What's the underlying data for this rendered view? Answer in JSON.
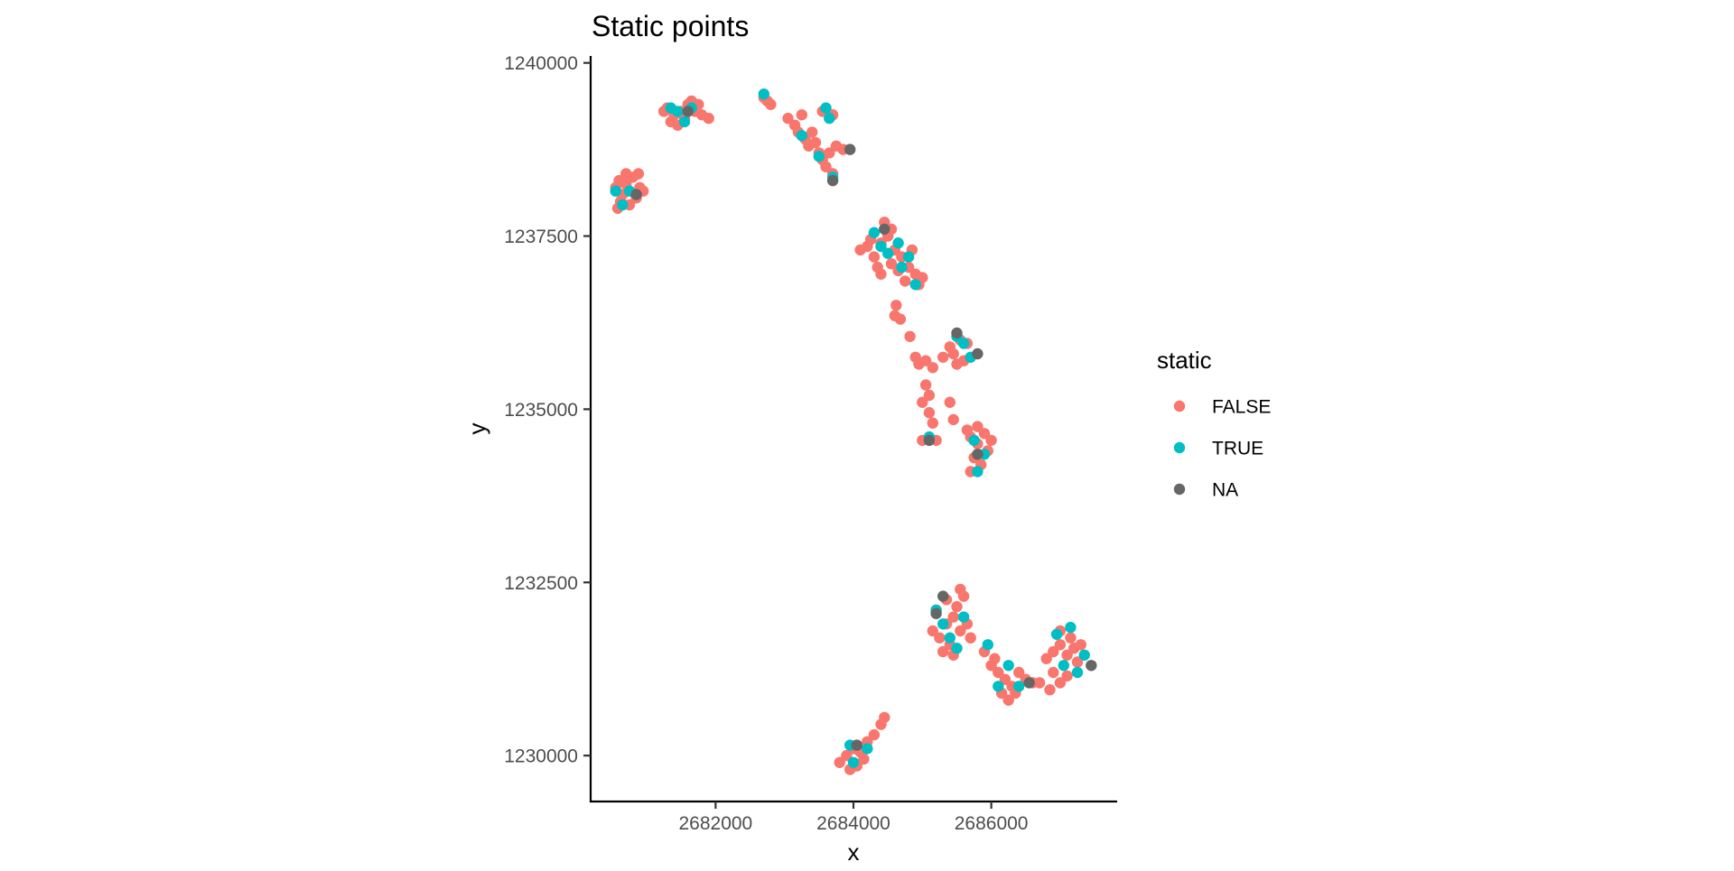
{
  "chart_data": {
    "type": "scatter",
    "title": "Static points",
    "xlabel": "x",
    "ylabel": "y",
    "xlim": [
      2680200,
      2687800
    ],
    "ylim": [
      1229350,
      1240100
    ],
    "x_ticks": [
      {
        "value": 2682000,
        "label": "2682000"
      },
      {
        "value": 2684000,
        "label": "2684000"
      },
      {
        "value": 2686000,
        "label": "2686000"
      }
    ],
    "y_ticks": [
      {
        "value": 1230000,
        "label": "1230000"
      },
      {
        "value": 1232500,
        "label": "1232500"
      },
      {
        "value": 1235000,
        "label": "1235000"
      },
      {
        "value": 1237500,
        "label": "1237500"
      },
      {
        "value": 1240000,
        "label": "1240000"
      }
    ],
    "grid": false,
    "legend": {
      "title": "static",
      "position": "right"
    },
    "series": [
      {
        "name": "FALSE",
        "color": "#F8766D",
        "points": [
          [
            2680550,
            1238200
          ],
          [
            2680600,
            1238300
          ],
          [
            2680650,
            1238100
          ],
          [
            2680700,
            1238250
          ],
          [
            2680800,
            1238350
          ],
          [
            2680900,
            1238200
          ],
          [
            2680620,
            1238000
          ],
          [
            2680750,
            1237950
          ],
          [
            2680850,
            1238050
          ],
          [
            2680950,
            1238150
          ],
          [
            2680580,
            1237900
          ],
          [
            2680700,
            1238400
          ],
          [
            2680880,
            1238400
          ],
          [
            2681300,
            1239350
          ],
          [
            2681400,
            1239250
          ],
          [
            2681500,
            1239300
          ],
          [
            2681600,
            1239400
          ],
          [
            2681700,
            1239300
          ],
          [
            2681450,
            1239100
          ],
          [
            2681550,
            1239200
          ],
          [
            2681350,
            1239150
          ],
          [
            2681800,
            1239250
          ],
          [
            2681650,
            1239450
          ],
          [
            2681250,
            1239300
          ],
          [
            2681900,
            1239200
          ],
          [
            2681750,
            1239400
          ],
          [
            2682700,
            1239500
          ],
          [
            2682750,
            1239450
          ],
          [
            2682800,
            1239400
          ],
          [
            2683050,
            1239200
          ],
          [
            2683150,
            1239100
          ],
          [
            2683200,
            1239000
          ],
          [
            2683300,
            1238900
          ],
          [
            2683350,
            1238800
          ],
          [
            2683450,
            1238850
          ],
          [
            2683500,
            1238700
          ],
          [
            2683550,
            1238600
          ],
          [
            2683650,
            1238700
          ],
          [
            2683600,
            1238500
          ],
          [
            2683700,
            1238400
          ],
          [
            2683250,
            1239250
          ],
          [
            2683400,
            1239000
          ],
          [
            2683750,
            1238800
          ],
          [
            2683850,
            1238750
          ],
          [
            2683550,
            1239300
          ],
          [
            2683700,
            1239250
          ],
          [
            2684100,
            1237300
          ],
          [
            2684200,
            1237350
          ],
          [
            2684300,
            1237200
          ],
          [
            2684400,
            1237400
          ],
          [
            2684500,
            1237500
          ],
          [
            2684600,
            1237300
          ],
          [
            2684700,
            1237200
          ],
          [
            2684800,
            1237050
          ],
          [
            2684900,
            1236950
          ],
          [
            2685000,
            1236900
          ],
          [
            2684450,
            1237700
          ],
          [
            2684550,
            1237600
          ],
          [
            2684350,
            1237050
          ],
          [
            2684650,
            1237000
          ],
          [
            2684750,
            1236850
          ],
          [
            2684250,
            1237450
          ],
          [
            2684850,
            1237300
          ],
          [
            2684550,
            1237100
          ],
          [
            2684400,
            1236950
          ],
          [
            2684950,
            1236800
          ],
          [
            2684620,
            1236500
          ],
          [
            2684680,
            1236300
          ],
          [
            2684600,
            1236350
          ],
          [
            2684820,
            1236050
          ],
          [
            2684900,
            1235750
          ],
          [
            2684950,
            1235650
          ],
          [
            2685050,
            1235700
          ],
          [
            2685150,
            1235600
          ],
          [
            2685300,
            1235750
          ],
          [
            2685400,
            1235900
          ],
          [
            2685450,
            1235800
          ],
          [
            2685500,
            1235650
          ],
          [
            2685600,
            1235700
          ],
          [
            2685050,
            1235350
          ],
          [
            2685100,
            1235200
          ],
          [
            2685000,
            1235100
          ],
          [
            2685100,
            1234950
          ],
          [
            2685150,
            1234800
          ],
          [
            2685200,
            1234550
          ],
          [
            2685000,
            1234550
          ],
          [
            2685400,
            1235100
          ],
          [
            2685450,
            1234850
          ],
          [
            2685650,
            1235950
          ],
          [
            2685550,
            1236000
          ],
          [
            2685650,
            1234700
          ],
          [
            2685700,
            1234600
          ],
          [
            2685800,
            1234500
          ],
          [
            2685900,
            1234650
          ],
          [
            2685950,
            1234400
          ],
          [
            2685750,
            1234300
          ],
          [
            2685850,
            1234200
          ],
          [
            2685700,
            1234100
          ],
          [
            2686000,
            1234550
          ],
          [
            2685800,
            1234750
          ],
          [
            2685150,
            1231800
          ],
          [
            2685250,
            1231700
          ],
          [
            2685350,
            1231900
          ],
          [
            2685450,
            1232000
          ],
          [
            2685550,
            1231800
          ],
          [
            2685300,
            1231500
          ],
          [
            2685400,
            1231600
          ],
          [
            2685500,
            1232150
          ],
          [
            2685600,
            1232300
          ],
          [
            2685650,
            1231900
          ],
          [
            2685200,
            1232100
          ],
          [
            2685350,
            1232250
          ],
          [
            2685700,
            1231700
          ],
          [
            2685450,
            1231450
          ],
          [
            2685550,
            1232400
          ],
          [
            2685900,
            1231500
          ],
          [
            2686000,
            1231300
          ],
          [
            2686100,
            1231200
          ],
          [
            2686200,
            1231100
          ],
          [
            2686300,
            1231000
          ],
          [
            2686150,
            1230900
          ],
          [
            2686250,
            1230800
          ],
          [
            2686400,
            1231200
          ],
          [
            2686500,
            1231100
          ],
          [
            2686600,
            1231050
          ],
          [
            2686050,
            1231400
          ],
          [
            2686350,
            1230900
          ],
          [
            2686700,
            1231050
          ],
          [
            2686800,
            1231400
          ],
          [
            2686900,
            1231500
          ],
          [
            2687000,
            1231600
          ],
          [
            2687100,
            1231450
          ],
          [
            2687200,
            1231550
          ],
          [
            2687300,
            1231600
          ],
          [
            2686900,
            1231200
          ],
          [
            2687000,
            1231050
          ],
          [
            2687100,
            1231150
          ],
          [
            2686850,
            1230950
          ],
          [
            2687000,
            1231800
          ],
          [
            2687150,
            1231700
          ],
          [
            2687250,
            1231350
          ],
          [
            2683800,
            1229900
          ],
          [
            2683900,
            1230000
          ],
          [
            2684000,
            1230100
          ],
          [
            2684100,
            1230050
          ],
          [
            2684200,
            1230200
          ],
          [
            2684300,
            1230300
          ],
          [
            2684400,
            1230450
          ],
          [
            2684450,
            1230550
          ],
          [
            2684050,
            1229850
          ],
          [
            2683950,
            1229800
          ],
          [
            2684150,
            1229950
          ]
        ]
      },
      {
        "name": "TRUE",
        "color": "#00BFC4",
        "points": [
          [
            2680550,
            1238150
          ],
          [
            2680750,
            1238150
          ],
          [
            2680650,
            1237950
          ],
          [
            2681450,
            1239300
          ],
          [
            2681650,
            1239350
          ],
          [
            2681550,
            1239150
          ],
          [
            2681350,
            1239350
          ],
          [
            2682700,
            1239550
          ],
          [
            2683600,
            1239350
          ],
          [
            2683650,
            1239200
          ],
          [
            2683250,
            1238950
          ],
          [
            2683500,
            1238650
          ],
          [
            2683700,
            1238350
          ],
          [
            2684300,
            1237550
          ],
          [
            2684500,
            1237250
          ],
          [
            2684650,
            1237400
          ],
          [
            2684700,
            1237050
          ],
          [
            2684900,
            1236800
          ],
          [
            2684400,
            1237350
          ],
          [
            2684800,
            1237200
          ],
          [
            2685500,
            1236050
          ],
          [
            2685700,
            1235750
          ],
          [
            2685600,
            1235950
          ],
          [
            2685100,
            1234600
          ],
          [
            2685800,
            1234100
          ],
          [
            2685900,
            1234350
          ],
          [
            2685750,
            1234550
          ],
          [
            2685200,
            1232100
          ],
          [
            2685300,
            1231900
          ],
          [
            2685600,
            1232000
          ],
          [
            2685400,
            1231700
          ],
          [
            2685500,
            1231550
          ],
          [
            2685950,
            1231600
          ],
          [
            2686100,
            1231000
          ],
          [
            2686400,
            1231000
          ],
          [
            2686250,
            1231300
          ],
          [
            2686950,
            1231750
          ],
          [
            2687050,
            1231300
          ],
          [
            2687250,
            1231200
          ],
          [
            2687350,
            1231450
          ],
          [
            2687150,
            1231850
          ],
          [
            2683950,
            1230150
          ],
          [
            2684200,
            1230100
          ],
          [
            2684000,
            1229900
          ]
        ]
      },
      {
        "name": "NA",
        "color": "#666666",
        "points": [
          [
            2680850,
            1238100
          ],
          [
            2681600,
            1239300
          ],
          [
            2683950,
            1238750
          ],
          [
            2683700,
            1238300
          ],
          [
            2684450,
            1237600
          ],
          [
            2685500,
            1236100
          ],
          [
            2685800,
            1235800
          ],
          [
            2685100,
            1234550
          ],
          [
            2685800,
            1234350
          ],
          [
            2685300,
            1232300
          ],
          [
            2685200,
            1232050
          ],
          [
            2686550,
            1231050
          ],
          [
            2687450,
            1231300
          ],
          [
            2684050,
            1230150
          ]
        ]
      }
    ]
  }
}
